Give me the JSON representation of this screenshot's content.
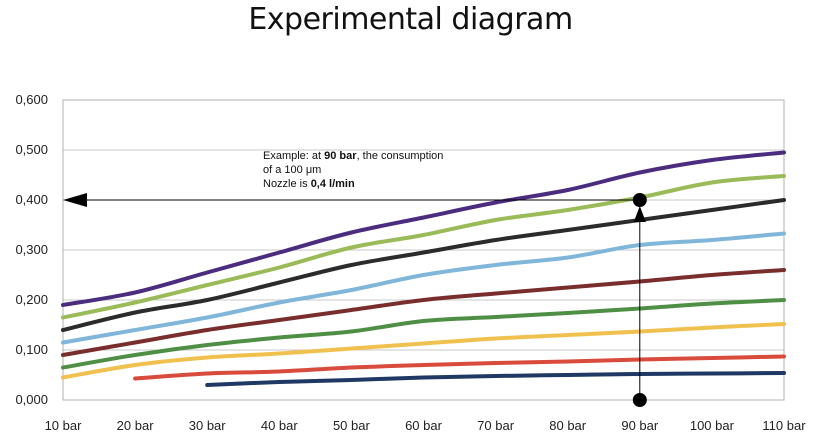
{
  "chart_data": {
    "type": "line",
    "title": "Experimental diagram",
    "categories": [
      "10 bar",
      "20 bar",
      "30 bar",
      "40 bar",
      "50 bar",
      "60 bar",
      "70 bar",
      "80 bar",
      "90 bar",
      "100 bar",
      "110 bar"
    ],
    "x_values": [
      10,
      20,
      30,
      40,
      50,
      60,
      70,
      80,
      90,
      100,
      110
    ],
    "y_ticks": [
      "0,000",
      "0,100",
      "0,200",
      "0,300",
      "0,400",
      "0,500",
      "0,600"
    ],
    "ylim": [
      0,
      0.6
    ],
    "xlim": [
      10,
      110
    ],
    "grid": true,
    "series": [
      {
        "color": "#4b2c7f",
        "values": [
          0.19,
          0.215,
          0.255,
          0.295,
          0.335,
          0.365,
          0.395,
          0.42,
          0.455,
          0.48,
          0.495
        ]
      },
      {
        "color": "#9bbb59",
        "values": [
          0.165,
          0.195,
          0.23,
          0.265,
          0.305,
          0.33,
          0.36,
          0.38,
          0.405,
          0.435,
          0.448
        ]
      },
      {
        "color": "#2b2b2b",
        "values": [
          0.14,
          0.175,
          0.2,
          0.235,
          0.27,
          0.295,
          0.32,
          0.34,
          0.36,
          0.38,
          0.4
        ]
      },
      {
        "color": "#7fb6d9",
        "values": [
          0.115,
          0.14,
          0.165,
          0.195,
          0.22,
          0.25,
          0.27,
          0.285,
          0.31,
          0.32,
          0.333
        ]
      },
      {
        "color": "#7a2d2d",
        "values": [
          0.09,
          0.115,
          0.14,
          0.16,
          0.18,
          0.2,
          0.213,
          0.225,
          0.237,
          0.25,
          0.26
        ]
      },
      {
        "color": "#4f8f45",
        "values": [
          0.065,
          0.09,
          0.11,
          0.125,
          0.137,
          0.158,
          0.166,
          0.174,
          0.183,
          0.193,
          0.2
        ]
      },
      {
        "color": "#f1c150",
        "values": [
          0.045,
          0.07,
          0.085,
          0.093,
          0.103,
          0.113,
          0.123,
          0.13,
          0.137,
          0.145,
          0.152
        ]
      },
      {
        "color": "#d94b3c",
        "values": [
          null,
          0.043,
          0.053,
          0.057,
          0.065,
          0.07,
          0.074,
          0.077,
          0.081,
          0.084,
          0.087
        ]
      },
      {
        "color": "#1f3864",
        "values": [
          null,
          null,
          0.03,
          0.036,
          0.04,
          0.045,
          0.048,
          0.05,
          0.052,
          0.053,
          0.054
        ]
      }
    ],
    "annotation": {
      "line1_prefix": "Example: at ",
      "line1_bold": "90 bar",
      "line1_suffix": ", the consumption",
      "line2": "of a  100 μm",
      "line3_prefix": "Nozzle is ",
      "line3_bold": "0,4 l/min",
      "point_x": 90,
      "point_y": 0.4
    }
  }
}
